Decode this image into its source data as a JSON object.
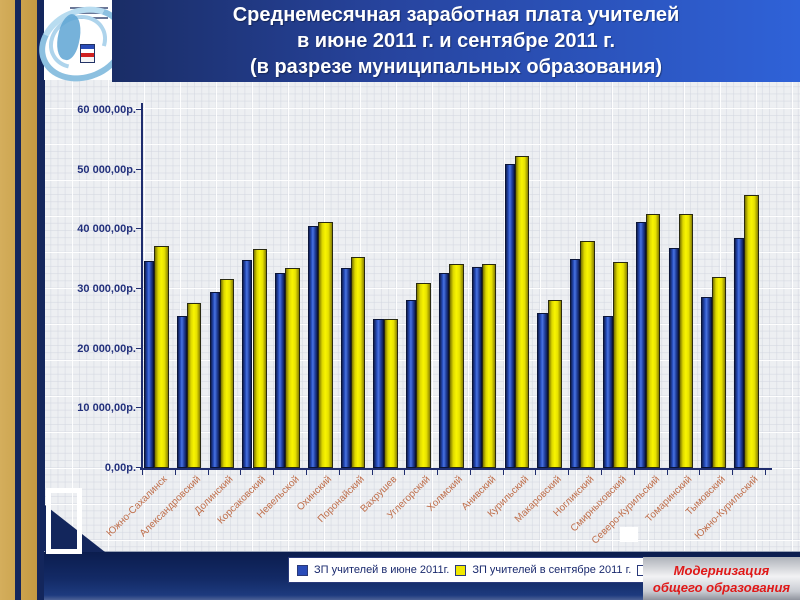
{
  "slide": {
    "title_lines": [
      "Среднемесячная заработная плата учителей",
      "в июне 2011 г. и  сентябре 2011 г.",
      "(в разрезе муниципальных образования)"
    ],
    "footer_badge": {
      "line1": "Модернизация",
      "line2": "общего образования"
    }
  },
  "chart_data": {
    "type": "bar",
    "title": "Среднемесячная заработная плата учителей в июне 2011 г. и сентябре 2011 г. (в разрезе муниципальных образования)",
    "categories": [
      "Южно-Сахалинск",
      "Александровский",
      "Долинский",
      "Корсаковский",
      "Невельской",
      "Охинский",
      "Поронайский",
      "Вахрушев",
      "Углегорский",
      "Холмский",
      "Анивский",
      "Курильский",
      "Макаровский",
      "Ногликский",
      "Смирныховский",
      "Северо-Курильский",
      "Томаринский",
      "Тымовский",
      "Южно-Курильский"
    ],
    "series": [
      {
        "name": "ЗП учителей в июне  2011г.",
        "color": "#2a4cb8",
        "values": [
          34700,
          25500,
          29500,
          34800,
          32600,
          40500,
          33600,
          24900,
          28200,
          32600,
          33700,
          50900,
          26000,
          35000,
          25500,
          41300,
          36800,
          28700,
          38500
        ]
      },
      {
        "name": "ЗП учителей в сентябре 2011 г.",
        "color": "#f0e800",
        "values": [
          37200,
          27600,
          31700,
          36700,
          33600,
          41300,
          35300,
          24900,
          31000,
          34200,
          34200,
          52300,
          28200,
          38000,
          34600,
          42500,
          42500,
          32000,
          45800
        ]
      }
    ],
    "ylim": [
      0,
      60000
    ],
    "y_ticks": [
      "0,00р.",
      "10 000,00р.",
      "20 000,00р.",
      "30 000,00р.",
      "40 000,00р.",
      "50 000,00р.",
      "60 000,00р."
    ],
    "xlabel": "",
    "ylabel": "",
    "grid": false,
    "legend_position": "bottom",
    "currency_suffix": "р."
  },
  "colors": {
    "title_bg_left": "#1a2d66",
    "title_bg_right": "#2f62d8",
    "title_text": "#ffffff",
    "gold_stripe": "#c9a24e",
    "frame_navy": "#13265c",
    "bar_june": "#2a4cb8",
    "bar_sept": "#f0e800",
    "category_label": "#bf6e4a",
    "axis_label": "#22307c",
    "footer_text_red": "#e01818"
  }
}
